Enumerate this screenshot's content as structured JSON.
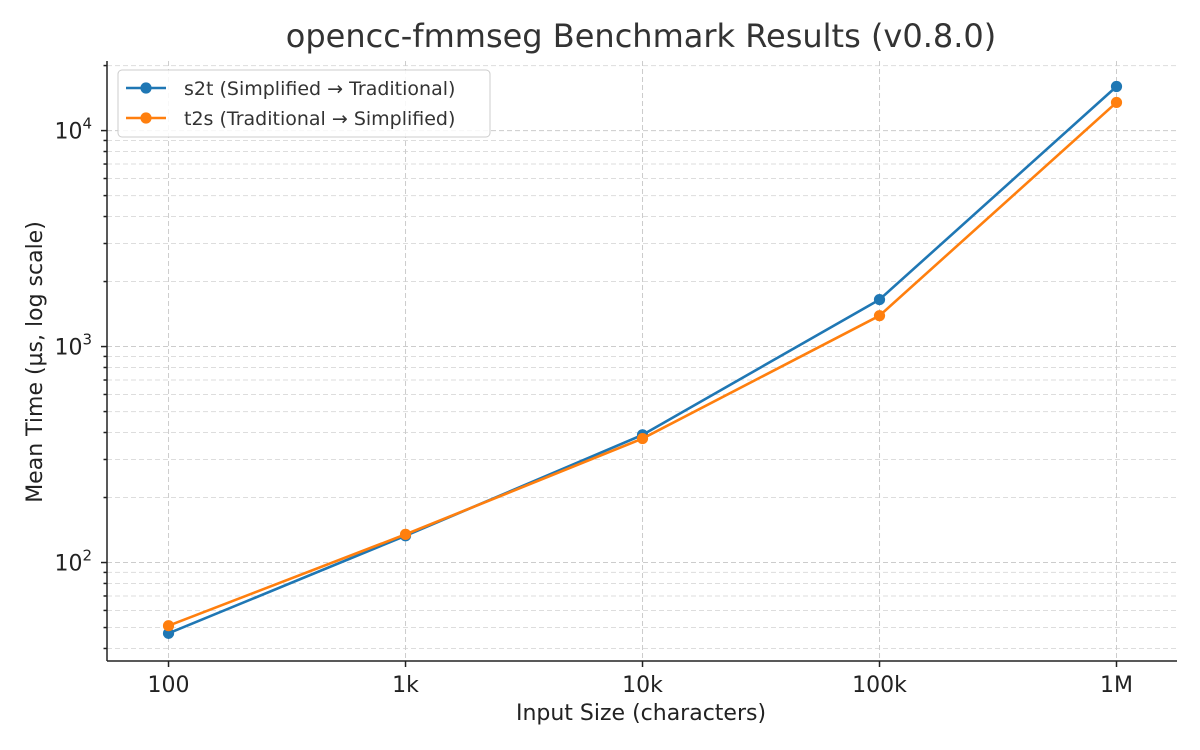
{
  "chart_data": {
    "type": "line",
    "title": "opencc-fmmseg Benchmark Results (v0.8.0)",
    "xlabel": "Input Size (characters)",
    "ylabel": "Mean Time (µs, log scale)",
    "categories": [
      "100",
      "1k",
      "10k",
      "100k",
      "1M"
    ],
    "x_values": [
      100,
      1000,
      10000,
      100000,
      1000000
    ],
    "x_scale": "log",
    "y_scale": "log",
    "ylim": [
      35,
      21000
    ],
    "y_ticks": [
      {
        "base": "10",
        "exp": "2",
        "value": 100
      },
      {
        "base": "10",
        "exp": "3",
        "value": 1000
      },
      {
        "base": "10",
        "exp": "4",
        "value": 10000
      }
    ],
    "grid": true,
    "legend_position": "top-left",
    "series": [
      {
        "name": "s2t (Simplified → Traditional)",
        "color": "#1f77b4",
        "values": [
          47,
          133,
          390,
          1650,
          16000
        ]
      },
      {
        "name": "t2s (Traditional → Simplified)",
        "color": "#ff7f0e",
        "values": [
          51,
          135,
          375,
          1390,
          13500
        ]
      }
    ]
  }
}
